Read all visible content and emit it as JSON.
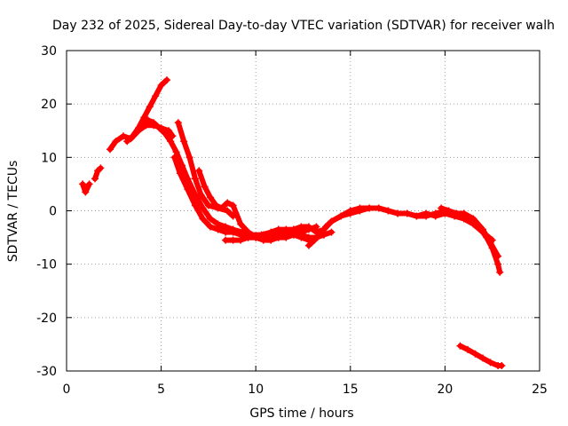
{
  "chart_data": {
    "type": "scatter",
    "title": "Day 232 of 2025, Sidereal Day-to-day VTEC variation (SDTVAR) for receiver walh",
    "xlabel": "GPS time / hours",
    "ylabel": "SDTVAR / TECUs",
    "xlim": [
      0,
      25
    ],
    "ylim": [
      -30,
      30
    ],
    "xticks": [
      0,
      5,
      10,
      15,
      20,
      25
    ],
    "yticks": [
      -30,
      -20,
      -10,
      0,
      10,
      20,
      30
    ],
    "xtick_labels": [
      "0",
      "5",
      "10",
      "15",
      "20",
      "25"
    ],
    "ytick_labels": [
      "-30",
      "-20",
      "-10",
      "0",
      "10",
      "20",
      "30"
    ],
    "grid": true,
    "series": [
      {
        "name": "trace-1",
        "color": "#ff0000",
        "x": [
          0.85,
          1.0,
          1.2
        ],
        "y": [
          5,
          3.5,
          5
        ]
      },
      {
        "name": "trace-2",
        "color": "#ff0000",
        "x": [
          1.5,
          1.65,
          1.8
        ],
        "y": [
          6,
          7.5,
          8
        ]
      },
      {
        "name": "trace-3",
        "color": "#ff0000",
        "x": [
          2.3,
          2.6,
          3.0,
          3.4,
          3.8,
          4.2,
          4.6,
          5.0,
          5.4,
          5.6
        ],
        "y": [
          11.5,
          13,
          14,
          13.5,
          15,
          16,
          16,
          15.5,
          15,
          14
        ]
      },
      {
        "name": "trace-4",
        "color": "#ff0000",
        "x": [
          3.2,
          3.5,
          3.8,
          4.1,
          4.4,
          4.7,
          5.0,
          5.3
        ],
        "y": [
          13,
          14,
          15.5,
          17.5,
          19.5,
          21.5,
          23.5,
          24.5
        ]
      },
      {
        "name": "trace-5",
        "color": "#ff0000",
        "x": [
          4.0,
          4.3,
          4.6,
          4.9,
          5.2,
          5.5,
          5.8,
          6.1,
          6.4,
          6.8,
          7.2,
          7.6,
          8.0,
          8.4,
          8.8,
          9.3,
          9.8,
          10.3,
          10.8,
          11.2,
          11.6,
          12.0,
          12.4,
          12.8,
          13.2
        ],
        "y": [
          16,
          17,
          16.5,
          15.5,
          14.5,
          13,
          11,
          8.5,
          6,
          3,
          0.5,
          -1.5,
          -2.5,
          -3,
          -3.5,
          -4,
          -4.5,
          -4.5,
          -4,
          -3.5,
          -3.5,
          -3.5,
          -4,
          -3.5,
          -3
        ]
      },
      {
        "name": "trace-6",
        "color": "#ff0000",
        "x": [
          5.9,
          6.2,
          6.5,
          6.8,
          7.1,
          7.5,
          8.0,
          8.5,
          8.8
        ],
        "y": [
          16.5,
          13,
          10,
          6,
          3,
          1,
          0.5,
          0,
          -1
        ]
      },
      {
        "name": "trace-7",
        "color": "#ff0000",
        "x": [
          5.7,
          6.0,
          6.4,
          6.8,
          7.2,
          7.6,
          8.0,
          8.4,
          8.8,
          9.2,
          9.6,
          10.0,
          10.4,
          10.8,
          11.2,
          11.6,
          12.0,
          12.4,
          12.8,
          13.2,
          13.6
        ],
        "y": [
          10,
          7,
          4,
          1,
          -1.5,
          -3,
          -3.5,
          -4,
          -4,
          -4.5,
          -5,
          -5,
          -4.5,
          -4.5,
          -5,
          -4.5,
          -4.5,
          -4.5,
          -5,
          -5,
          -4.5
        ]
      },
      {
        "name": "trace-8",
        "color": "#ff0000",
        "x": [
          7.0,
          7.3,
          7.6,
          7.9,
          8.2,
          8.5,
          8.8,
          9.2,
          9.6,
          10.0,
          10.4,
          10.8,
          11.2,
          11.6,
          12.0,
          12.4,
          12.8,
          13.2,
          13.6,
          14.0
        ],
        "y": [
          7.5,
          4.5,
          2.5,
          1,
          0.5,
          1.5,
          1,
          -2.5,
          -4,
          -5,
          -5.5,
          -5.5,
          -5,
          -5,
          -4.5,
          -5,
          -5.5,
          -5,
          -4.5,
          -4
        ]
      },
      {
        "name": "trace-9",
        "color": "#ff0000",
        "x": [
          8.4,
          8.8,
          9.2,
          9.6,
          10.0,
          10.4,
          10.8,
          11.2,
          11.6,
          12.0,
          12.4,
          12.8,
          13.2,
          13.6,
          14.0,
          14.5,
          15.0,
          15.5,
          16.0,
          16.5,
          17.0,
          17.5,
          18.0,
          18.5,
          19.0,
          19.5,
          20.0,
          20.5,
          21.0,
          21.5,
          22.0,
          22.5
        ],
        "y": [
          -5.5,
          -5.5,
          -5.5,
          -5,
          -5,
          -5,
          -4.5,
          -4.5,
          -4,
          -3.5,
          -3,
          -3,
          -4,
          -3.5,
          -2,
          -1,
          0,
          0.5,
          0.5,
          0.5,
          0,
          -0.5,
          -0.5,
          -1,
          -0.5,
          -1,
          -0.5,
          -1,
          -1.5,
          -2.5,
          -4,
          -5.5
        ]
      },
      {
        "name": "trace-10",
        "color": "#ff0000",
        "x": [
          12.8,
          13.1,
          13.4,
          13.7,
          14.0,
          14.5,
          15.0,
          15.5,
          16.0,
          16.5,
          17.0,
          17.5,
          18.0,
          18.5,
          19.0,
          19.5,
          20.0,
          20.5,
          21.0,
          21.5,
          22.0,
          22.4,
          22.8
        ],
        "y": [
          -6.5,
          -5.5,
          -4.5,
          -3,
          -2,
          -1,
          -0.5,
          0,
          0.5,
          0.5,
          0,
          -0.5,
          -0.5,
          -1,
          -1,
          -0.5,
          0,
          -0.5,
          -0.5,
          -1.5,
          -3.5,
          -6,
          -8.5
        ]
      },
      {
        "name": "trace-11",
        "color": "#ff0000",
        "x": [
          19.8,
          20.2,
          20.6,
          21.0,
          21.4,
          21.8,
          22.2,
          22.5,
          22.8,
          22.9
        ],
        "y": [
          0.5,
          0,
          -0.5,
          -1,
          -2,
          -3,
          -5,
          -7,
          -10,
          -11.5
        ]
      },
      {
        "name": "trace-12",
        "color": "#ff0000",
        "x": [
          20.8,
          21.2,
          21.6,
          22.0,
          22.4,
          22.8,
          23.0
        ],
        "y": [
          -25.3,
          -26,
          -26.8,
          -27.6,
          -28.4,
          -29,
          -29
        ]
      }
    ]
  }
}
